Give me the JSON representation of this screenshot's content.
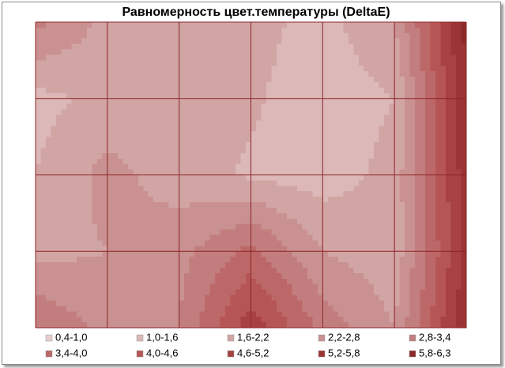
{
  "chart_data": {
    "type": "contour",
    "title": "Равномерность цвет.температуры (DeltaE)",
    "z": [
      [
        3.0,
        2.0,
        2.0,
        1.8,
        1.4,
        2.2,
        6.0
      ],
      [
        1.4,
        1.8,
        2.0,
        1.7,
        1.2,
        1.6,
        5.8
      ],
      [
        1.6,
        2.4,
        1.9,
        1.5,
        1.3,
        1.8,
        5.6
      ],
      [
        2.0,
        2.2,
        2.6,
        3.6,
        2.2,
        1.8,
        5.4
      ],
      [
        3.4,
        2.6,
        2.8,
        5.0,
        3.2,
        2.2,
        5.8
      ]
    ],
    "bands": [
      {
        "label": "0,4-1,0",
        "from": 0.4,
        "to": 1.0,
        "color": "#e6cccc"
      },
      {
        "label": "1,0-1,6",
        "from": 1.0,
        "to": 1.6,
        "color": "#dcb8b8"
      },
      {
        "label": "1,6-2,2",
        "from": 1.6,
        "to": 2.2,
        "color": "#d2a5a5"
      },
      {
        "label": "2,2-2,8",
        "from": 2.2,
        "to": 2.8,
        "color": "#c99191"
      },
      {
        "label": "2,8-3,4",
        "from": 2.8,
        "to": 3.4,
        "color": "#c27e7e"
      },
      {
        "label": "3,4-4,0",
        "from": 3.4,
        "to": 4.0,
        "color": "#bd6868"
      },
      {
        "label": "4,0-4,6",
        "from": 4.0,
        "to": 4.6,
        "color": "#b65555"
      },
      {
        "label": "4,6-5,2",
        "from": 4.6,
        "to": 5.2,
        "color": "#a84242"
      },
      {
        "label": "5,2-5,8",
        "from": 5.2,
        "to": 5.8,
        "color": "#9b3535"
      },
      {
        "label": "5,8-6,3",
        "from": 5.8,
        "to": 6.3,
        "color": "#8c2a2a"
      }
    ],
    "grid": true
  }
}
